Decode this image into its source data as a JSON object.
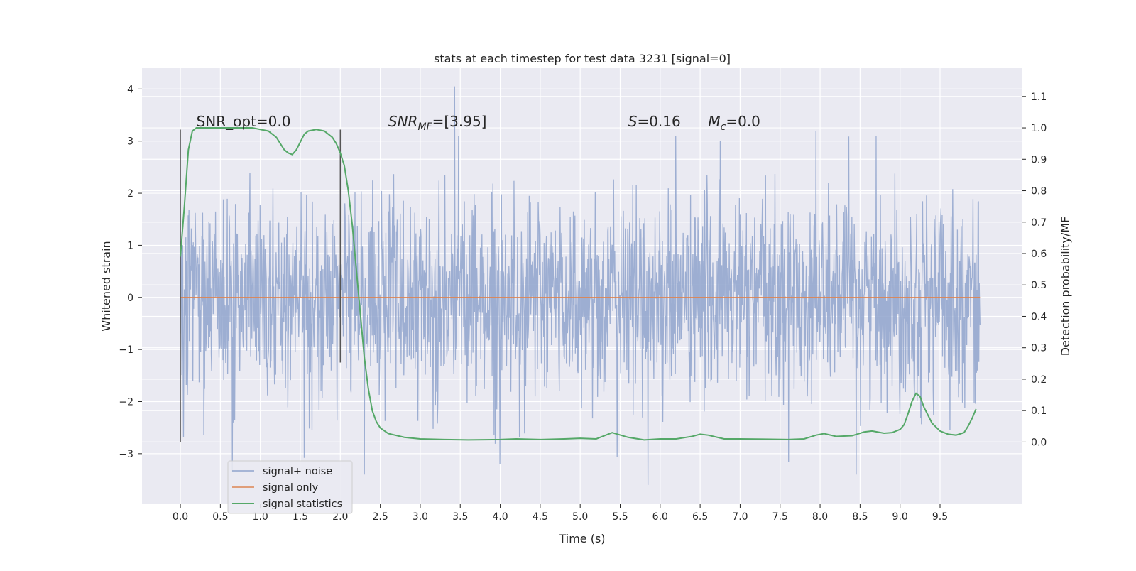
{
  "chart_data": {
    "type": "line",
    "title": "stats at each timestep for test data 3231 [signal=0]",
    "xlabel": "Time (s)",
    "ylabel_left": "Whitened strain",
    "ylabel_right": "Detection probability/MF",
    "xlim": [
      -0.48,
      10.53
    ],
    "ylim_left": [
      -3.97,
      4.4
    ],
    "ylim_right": [
      -0.198,
      1.19
    ],
    "x_ticks": [
      0.0,
      0.5,
      1.0,
      1.5,
      2.0,
      2.5,
      3.0,
      3.5,
      4.0,
      4.5,
      5.0,
      5.5,
      6.0,
      6.5,
      7.0,
      7.5,
      8.0,
      8.5,
      9.0,
      9.5
    ],
    "x_tick_labels": [
      "0.0",
      "0.5",
      "1.0",
      "1.5",
      "2.0",
      "2.5",
      "3.0",
      "3.5",
      "4.0",
      "4.5",
      "5.0",
      "5.5",
      "6.0",
      "6.5",
      "7.0",
      "7.5",
      "8.0",
      "8.5",
      "9.0",
      "9.5"
    ],
    "y_left_ticks": [
      4,
      3,
      2,
      1,
      0,
      -1,
      -2,
      -3
    ],
    "y_left_tick_labels": [
      "4",
      "3",
      "2",
      "1",
      "0",
      "−1",
      "−2",
      "−3"
    ],
    "y_right_ticks": [
      1.1,
      1.0,
      0.9,
      0.8,
      0.7,
      0.6,
      0.5,
      0.4,
      0.3,
      0.2,
      0.1,
      0.0
    ],
    "y_right_tick_labels": [
      "1.1",
      "1.0",
      "0.9",
      "0.8",
      "0.7",
      "0.6",
      "0.5",
      "0.4",
      "0.3",
      "0.2",
      "0.1",
      "0.0"
    ],
    "grid": true,
    "legend_position": "lower-left",
    "annotations": [
      {
        "text": "SNR_opt=0.0",
        "x": 0.2,
        "y_right": 1.0
      },
      {
        "text": "SNR_MF=[3.95]",
        "x": 2.6,
        "y_right": 1.0
      },
      {
        "text": "S=0.16",
        "x": 5.6,
        "y_right": 1.0
      },
      {
        "text": "M_c=0.0",
        "x": 6.6,
        "y_right": 1.0
      }
    ],
    "markers": [
      {
        "x": 0.0,
        "y_left_range": [
          -2.78,
          3.22
        ]
      },
      {
        "x": 2.0,
        "y_left_range": [
          -1.25,
          3.22
        ]
      }
    ],
    "series": [
      {
        "name": "signal+ noise",
        "color": "#8fa3cc",
        "t_range": [
          0.0,
          10.0
        ],
        "sample_count": 2048,
        "envelope_peaks": [
          {
            "x": 3.43,
            "y": 4.05
          },
          {
            "x": 0.65,
            "y": -3.35
          },
          {
            "x": 2.3,
            "y": -3.4
          },
          {
            "x": 5.85,
            "y": -3.6
          },
          {
            "x": 8.45,
            "y": -3.4
          },
          {
            "x": 7.95,
            "y": 3.2
          },
          {
            "x": 6.75,
            "y": 3.0
          }
        ]
      },
      {
        "name": "signal only",
        "color": "#dd8452",
        "x": [
          0.0,
          10.0
        ],
        "y": [
          0.0,
          0.0
        ]
      },
      {
        "name": "signal statistics",
        "color": "#55a868",
        "x": [
          0.0,
          0.05,
          0.1,
          0.15,
          0.2,
          0.3,
          0.5,
          0.7,
          0.9,
          1.0,
          1.1,
          1.2,
          1.3,
          1.35,
          1.4,
          1.45,
          1.5,
          1.55,
          1.6,
          1.7,
          1.8,
          1.9,
          1.95,
          2.0,
          2.05,
          2.1,
          2.15,
          2.2,
          2.25,
          2.3,
          2.35,
          2.4,
          2.45,
          2.5,
          2.6,
          2.8,
          3.0,
          3.3,
          3.6,
          4.0,
          4.2,
          4.5,
          4.8,
          5.0,
          5.2,
          5.3,
          5.4,
          5.6,
          5.8,
          6.0,
          6.2,
          6.4,
          6.5,
          6.6,
          6.8,
          7.0,
          7.3,
          7.6,
          7.8,
          7.95,
          8.05,
          8.2,
          8.4,
          8.55,
          8.65,
          8.8,
          8.9,
          9.0,
          9.05,
          9.1,
          9.15,
          9.2,
          9.25,
          9.3,
          9.4,
          9.5,
          9.6,
          9.7,
          9.8,
          9.85,
          9.9,
          9.95
        ],
        "y": [
          0.59,
          0.75,
          0.93,
          0.99,
          1.0,
          1.0,
          1.0,
          1.0,
          1.0,
          0.995,
          0.99,
          0.97,
          0.93,
          0.92,
          0.915,
          0.93,
          0.955,
          0.98,
          0.99,
          0.995,
          0.99,
          0.97,
          0.95,
          0.92,
          0.88,
          0.8,
          0.69,
          0.55,
          0.41,
          0.27,
          0.17,
          0.1,
          0.065,
          0.045,
          0.027,
          0.015,
          0.01,
          0.008,
          0.007,
          0.008,
          0.01,
          0.008,
          0.01,
          0.012,
          0.01,
          0.02,
          0.03,
          0.015,
          0.007,
          0.01,
          0.01,
          0.018,
          0.025,
          0.022,
          0.01,
          0.01,
          0.009,
          0.008,
          0.01,
          0.022,
          0.027,
          0.018,
          0.02,
          0.032,
          0.035,
          0.028,
          0.03,
          0.04,
          0.055,
          0.09,
          0.13,
          0.155,
          0.145,
          0.11,
          0.06,
          0.035,
          0.025,
          0.022,
          0.03,
          0.05,
          0.075,
          0.105
        ]
      }
    ]
  }
}
